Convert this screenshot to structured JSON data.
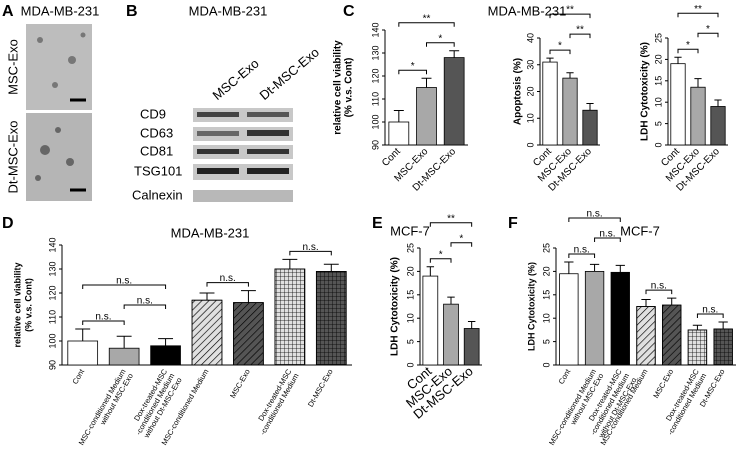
{
  "panel_labels": [
    "A",
    "B",
    "C",
    "D",
    "E",
    "F"
  ],
  "panel_a": {
    "title": "MDA-MB-231",
    "labels": [
      "MSC-Exo",
      "Dt-MSC-Exo"
    ]
  },
  "panel_b": {
    "title": "MDA-MB-231",
    "columns": [
      "MSC-Exo",
      "Dt-MSC-Exo"
    ],
    "rows": [
      "CD9",
      "CD63",
      "CD81",
      "TSG101",
      "Calnexin"
    ]
  },
  "panel_c": {
    "title": "MDA-MB-231"
  },
  "chart_data": [
    {
      "type": "bar",
      "ylabel": [
        "relative cell viability",
        "(% v.s. Cont)"
      ],
      "categories": [
        [
          "Cont"
        ],
        [
          "MSC-Exo"
        ],
        [
          "Dt-MSC-Exo"
        ]
      ],
      "values": [
        100,
        115,
        128
      ],
      "errors": [
        5,
        4,
        3
      ],
      "colors": [
        "#ffffff",
        "#a8a8a8",
        "#555555"
      ],
      "ylim": [
        90,
        140
      ],
      "yticks": [
        90,
        100,
        110,
        120,
        130,
        140
      ],
      "brackets": [
        {
          "span": [
            0,
            1
          ],
          "label": "*"
        },
        {
          "span": [
            1,
            2
          ],
          "label": "*"
        },
        {
          "span": [
            0,
            2
          ],
          "label": "**"
        }
      ]
    },
    {
      "type": "bar",
      "ylabel": "Apoptosis (%)",
      "categories": [
        [
          "Cont"
        ],
        [
          "MSC-Exo"
        ],
        [
          "Dt-MSC-Exo"
        ]
      ],
      "values": [
        31,
        25,
        13
      ],
      "errors": [
        1.5,
        2,
        2.5
      ],
      "colors": [
        "#ffffff",
        "#a8a8a8",
        "#555555"
      ],
      "ylim": [
        0,
        40
      ],
      "yticks": [
        0,
        10,
        20,
        30,
        40
      ],
      "brackets": [
        {
          "span": [
            0,
            1
          ],
          "label": "*"
        },
        {
          "span": [
            1,
            2
          ],
          "label": "**"
        },
        {
          "span": [
            0,
            2
          ],
          "label": "**"
        }
      ]
    },
    {
      "type": "bar",
      "ylabel": "LDH Cytotoxicity (%)",
      "categories": [
        [
          "Cont"
        ],
        [
          "MSC-Exo"
        ],
        [
          "Dt-MSC-Exo"
        ]
      ],
      "values": [
        19,
        13.5,
        9
      ],
      "errors": [
        1.5,
        2,
        1.5
      ],
      "colors": [
        "#ffffff",
        "#a8a8a8",
        "#555555"
      ],
      "ylim": [
        0,
        25
      ],
      "yticks": [
        0,
        5,
        10,
        15,
        20,
        25
      ],
      "brackets": [
        {
          "span": [
            0,
            1
          ],
          "label": "*"
        },
        {
          "span": [
            1,
            2
          ],
          "label": "*"
        },
        {
          "span": [
            0,
            2
          ],
          "label": "**"
        }
      ]
    },
    {
      "type": "bar",
      "title": "MDA-MB-231",
      "ylabel": [
        "relative cell viability",
        "(% v.s. Cont)"
      ],
      "categories": [
        [
          "Cont"
        ],
        [
          "MSC-conditioned Medium",
          "without MSC-Exo"
        ],
        [
          "Dox-treated-MSC",
          "-conditioned Medium",
          "without Dt-MSC-Exo"
        ],
        [
          "MSC-conditioned Medium"
        ],
        [
          "MSC-Exo"
        ],
        [
          "Dox-treated-MSC",
          "-conditioned Medium"
        ],
        [
          "Dt-MSC-Exo"
        ]
      ],
      "values": [
        100,
        97,
        98,
        117,
        116,
        130,
        129
      ],
      "errors": [
        5,
        5,
        3,
        3,
        5,
        4,
        3
      ],
      "colors": [
        "#ffffff",
        "#a8a8a8",
        "#000000",
        "#e0e0e0",
        "#555555",
        "#e0e0e0",
        "#555555"
      ],
      "patterns": [
        null,
        null,
        null,
        "diagonal",
        "diagonal",
        "grid",
        "grid"
      ],
      "ylim": [
        90,
        140
      ],
      "yticks": [
        90,
        100,
        110,
        120,
        130,
        140
      ],
      "brackets": [
        {
          "span": [
            0,
            1
          ],
          "label": "n.s."
        },
        {
          "span": [
            1,
            2
          ],
          "label": "n.s."
        },
        {
          "span": [
            0,
            2
          ],
          "label": "n.s."
        },
        {
          "span": [
            3,
            4
          ],
          "label": "n.s."
        },
        {
          "span": [
            5,
            6
          ],
          "label": "n.s."
        }
      ]
    },
    {
      "type": "bar",
      "title": "MCF-7",
      "ylabel": "LDH Cytotoxicity (%)",
      "categories": [
        [
          "Cont"
        ],
        [
          "MSC-Exo"
        ],
        [
          "Dt-MSC-Exo"
        ]
      ],
      "values": [
        19,
        13,
        7.8
      ],
      "errors": [
        2,
        1.5,
        1.5
      ],
      "colors": [
        "#ffffff",
        "#a8a8a8",
        "#555555"
      ],
      "ylim": [
        0,
        25
      ],
      "yticks": [
        0,
        5,
        10,
        15,
        20,
        25
      ],
      "brackets": [
        {
          "span": [
            0,
            1
          ],
          "label": "*"
        },
        {
          "span": [
            1,
            2
          ],
          "label": "*"
        },
        {
          "span": [
            0,
            2
          ],
          "label": "**"
        }
      ]
    },
    {
      "type": "bar",
      "title": "MCF-7",
      "ylabel": "LDH Cytotoxicity (%)",
      "categories": [
        [
          "Cont"
        ],
        [
          "MSC-conditioned Medium",
          "without MSC-Exo"
        ],
        [
          "Dox-treated-MSC",
          "-conditioned Medium",
          "without Dt-MSC-Exo"
        ],
        [
          "MSC-conditioned Medium"
        ],
        [
          "MSC-Exo"
        ],
        [
          "Dox-treated-MSC",
          "-conditioned Medium"
        ],
        [
          "Dt-MSC-Exo"
        ]
      ],
      "values": [
        19.5,
        20,
        19.8,
        12.5,
        12.8,
        7.5,
        7.7
      ],
      "errors": [
        2.5,
        1.5,
        1.5,
        1.5,
        1.5,
        1,
        1.5
      ],
      "colors": [
        "#ffffff",
        "#a8a8a8",
        "#000000",
        "#e0e0e0",
        "#555555",
        "#e0e0e0",
        "#555555"
      ],
      "patterns": [
        null,
        null,
        null,
        "diagonal",
        "diagonal",
        "grid",
        "grid"
      ],
      "ylim": [
        0,
        25
      ],
      "yticks": [
        0,
        5,
        10,
        15,
        20,
        25
      ],
      "brackets": [
        {
          "span": [
            0,
            1
          ],
          "label": "n.s."
        },
        {
          "span": [
            1,
            2
          ],
          "label": "n.s."
        },
        {
          "span": [
            0,
            2
          ],
          "label": "n.s."
        },
        {
          "span": [
            3,
            4
          ],
          "label": "n.s."
        },
        {
          "span": [
            5,
            6
          ],
          "label": "n.s."
        }
      ]
    }
  ]
}
